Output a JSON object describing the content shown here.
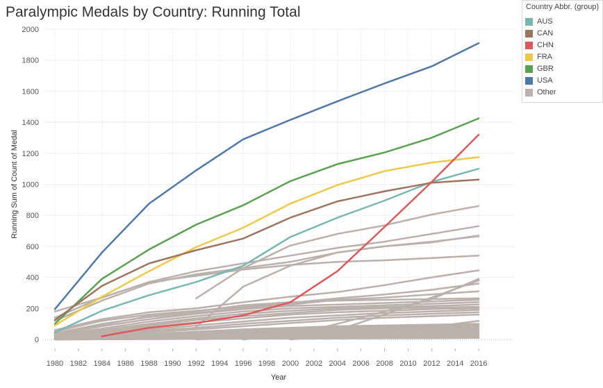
{
  "chart_data": {
    "type": "line",
    "title": "Paralympic Medals by Country: Running Total",
    "xlabel": "Year",
    "ylabel": "Running Sum of Count of Medal",
    "xlim": [
      1979,
      2019
    ],
    "ylim": [
      0,
      2000
    ],
    "x_ticks": [
      1980,
      1982,
      1984,
      1986,
      1988,
      1990,
      1992,
      1994,
      1996,
      1998,
      2000,
      2002,
      2004,
      2006,
      2008,
      2010,
      2012,
      2014,
      2016
    ],
    "y_ticks": [
      0,
      200,
      400,
      600,
      800,
      1000,
      1200,
      1400,
      1600,
      1800,
      2000
    ],
    "legend_title": "Country Abbr. (group)",
    "legend_position": "top-right",
    "legend": [
      {
        "name": "AUS",
        "color": "#76b7b2"
      },
      {
        "name": "CAN",
        "color": "#9c755f"
      },
      {
        "name": "CHN",
        "color": "#e15759"
      },
      {
        "name": "FRA",
        "color": "#edc948"
      },
      {
        "name": "GBR",
        "color": "#59a14f"
      },
      {
        "name": "USA",
        "color": "#4e79a7"
      },
      {
        "name": "Other",
        "color": "#bab0ac"
      }
    ],
    "series": [
      {
        "name": "USA",
        "color": "#4e79a7",
        "x": [
          1980,
          1984,
          1988,
          1992,
          1996,
          2000,
          2004,
          2008,
          2012,
          2016
        ],
        "y": [
          195,
          560,
          875,
          1090,
          1290,
          1415,
          1535,
          1650,
          1760,
          1910
        ]
      },
      {
        "name": "GBR",
        "color": "#59a14f",
        "x": [
          1980,
          1984,
          1988,
          1992,
          1996,
          2000,
          2004,
          2008,
          2012,
          2016
        ],
        "y": [
          100,
          390,
          580,
          740,
          865,
          1020,
          1130,
          1205,
          1300,
          1425
        ]
      },
      {
        "name": "FRA",
        "color": "#edc948",
        "x": [
          1980,
          1984,
          1988,
          1992,
          1996,
          2000,
          2004,
          2008,
          2012,
          2016
        ],
        "y": [
          90,
          275,
          440,
          595,
          720,
          875,
          995,
          1085,
          1140,
          1175
        ]
      },
      {
        "name": "AUS",
        "color": "#76b7b2",
        "x": [
          1980,
          1984,
          1988,
          1992,
          1996,
          2000,
          2004,
          2008,
          2012,
          2016
        ],
        "y": [
          45,
          185,
          285,
          370,
          475,
          660,
          785,
          895,
          1015,
          1100
        ]
      },
      {
        "name": "CAN",
        "color": "#9c755f",
        "x": [
          1980,
          1984,
          1988,
          1992,
          1996,
          2000,
          2004,
          2008,
          2012,
          2016
        ],
        "y": [
          125,
          345,
          490,
          575,
          650,
          785,
          890,
          955,
          1010,
          1030
        ]
      },
      {
        "name": "CHN",
        "color": "#e15759",
        "x": [
          1984,
          1988,
          1992,
          1996,
          2000,
          2004,
          2008,
          2012,
          2016
        ],
        "y": [
          20,
          75,
          105,
          155,
          240,
          440,
          725,
          1015,
          1320
        ]
      }
    ],
    "other_series": [
      {
        "x": [
          1980,
          1984,
          1988,
          1992,
          1996,
          2000,
          2004,
          2008,
          2012,
          2016
        ],
        "y": [
          180,
          270,
          370,
          440,
          490,
          540,
          590,
          630,
          680,
          730
        ]
      },
      {
        "x": [
          1980,
          1984,
          1988,
          1992,
          1996,
          2000,
          2004,
          2008,
          2012,
          2016
        ],
        "y": [
          120,
          250,
          360,
          420,
          460,
          500,
          560,
          600,
          630,
          665
        ]
      },
      {
        "x": [
          1980,
          1984,
          1988,
          1992,
          1996,
          2000,
          2004,
          2008,
          2012,
          2016
        ],
        "y": [
          140,
          270,
          370,
          410,
          450,
          480,
          500,
          510,
          525,
          540
        ]
      },
      {
        "x": [
          1992,
          1996,
          2000,
          2004,
          2008,
          2012,
          2016
        ],
        "y": [
          265,
          460,
          605,
          680,
          735,
          805,
          860
        ]
      },
      {
        "x": [
          1992,
          1996,
          2000,
          2004,
          2008,
          2012,
          2016
        ],
        "y": [
          80,
          340,
          475,
          560,
          600,
          625,
          670
        ]
      },
      {
        "x": [
          1980,
          1984,
          1988,
          1992,
          1996,
          2000,
          2004,
          2008,
          2012,
          2016
        ],
        "y": [
          60,
          130,
          175,
          200,
          240,
          275,
          305,
          350,
          400,
          445
        ]
      },
      {
        "x": [
          1980,
          1984,
          1988,
          1992,
          1996,
          2000,
          2004,
          2008,
          2012,
          2016
        ],
        "y": [
          50,
          120,
          160,
          185,
          210,
          235,
          265,
          290,
          320,
          360
        ]
      },
      {
        "x": [
          1980,
          1984,
          1988,
          1992,
          1996,
          2000,
          2004,
          2008,
          2012,
          2016
        ],
        "y": [
          40,
          100,
          145,
          170,
          200,
          225,
          255,
          270,
          290,
          310
        ]
      },
      {
        "x": [
          1980,
          1984,
          1988,
          1992,
          1996,
          2000,
          2004,
          2008,
          2012,
          2016
        ],
        "y": [
          35,
          95,
          150,
          180,
          220,
          240,
          250,
          255,
          260,
          265
        ]
      },
      {
        "x": [
          1980,
          1984,
          1988,
          1992,
          1996,
          2000,
          2004,
          2008,
          2012,
          2016
        ],
        "y": [
          30,
          85,
          130,
          165,
          195,
          215,
          225,
          235,
          245,
          255
        ]
      },
      {
        "x": [
          1980,
          1984,
          1988,
          1992,
          1996,
          2000,
          2004,
          2008,
          2012,
          2016
        ],
        "y": [
          25,
          70,
          115,
          150,
          180,
          200,
          210,
          220,
          230,
          240
        ]
      },
      {
        "x": [
          1980,
          1984,
          1988,
          1992,
          1996,
          2000,
          2004,
          2008,
          2012,
          2016
        ],
        "y": [
          20,
          60,
          100,
          135,
          165,
          185,
          200,
          210,
          215,
          225
        ]
      },
      {
        "x": [
          1980,
          1984,
          1988,
          1992,
          1996,
          2000,
          2004,
          2008,
          2012,
          2016
        ],
        "y": [
          15,
          50,
          90,
          125,
          150,
          170,
          190,
          200,
          205,
          210
        ]
      },
      {
        "x": [
          1980,
          1984,
          1988,
          1992,
          1996,
          2000,
          2004,
          2008,
          2012,
          2016
        ],
        "y": [
          15,
          40,
          80,
          110,
          135,
          160,
          175,
          185,
          195,
          200
        ]
      },
      {
        "x": [
          1980,
          1984,
          1988,
          1992,
          1996,
          2000,
          2004,
          2008,
          2012,
          2016
        ],
        "y": [
          10,
          35,
          65,
          90,
          115,
          140,
          155,
          170,
          180,
          190
        ]
      },
      {
        "x": [
          1980,
          1984,
          1988,
          1992,
          1996,
          2000,
          2004,
          2008,
          2012,
          2016
        ],
        "y": [
          10,
          30,
          55,
          75,
          100,
          120,
          140,
          155,
          165,
          175
        ]
      },
      {
        "x": [
          1980,
          1984,
          1988,
          1992,
          1996,
          2000,
          2004,
          2008,
          2012,
          2016
        ],
        "y": [
          5,
          25,
          45,
          65,
          85,
          105,
          125,
          140,
          150,
          160
        ]
      },
      {
        "x": [
          1996,
          2000,
          2004,
          2008,
          2012,
          2016
        ],
        "y": [
          0,
          30,
          100,
          180,
          260,
          390
        ]
      },
      {
        "x": [
          2000,
          2004,
          2008,
          2012,
          2016
        ],
        "y": [
          0,
          60,
          160,
          270,
          380
        ]
      },
      {
        "x": [
          1980,
          1984,
          1988,
          1992,
          1996,
          2000,
          2004,
          2008,
          2012,
          2016
        ],
        "y": [
          5,
          20,
          35,
          50,
          65,
          75,
          85,
          90,
          95,
          100
        ]
      },
      {
        "x": [
          1980,
          1984,
          1988,
          1992,
          1996,
          2000,
          2004,
          2008,
          2012,
          2016
        ],
        "y": [
          5,
          15,
          30,
          40,
          55,
          65,
          75,
          80,
          88,
          95
        ]
      },
      {
        "x": [
          1980,
          1984,
          1988,
          1992,
          1996,
          2000,
          2004,
          2008,
          2012,
          2016
        ],
        "y": [
          0,
          10,
          25,
          35,
          45,
          55,
          65,
          72,
          80,
          85
        ]
      },
      {
        "x": [
          1980,
          1984,
          1988,
          1992,
          1996,
          2000,
          2004,
          2008,
          2012,
          2016
        ],
        "y": [
          0,
          10,
          20,
          30,
          40,
          50,
          55,
          62,
          70,
          75
        ]
      },
      {
        "x": [
          1980,
          1984,
          1988,
          1992,
          1996,
          2000,
          2004,
          2008,
          2012,
          2016
        ],
        "y": [
          0,
          8,
          15,
          25,
          32,
          40,
          48,
          55,
          60,
          65
        ]
      },
      {
        "x": [
          1980,
          1984,
          1988,
          1992,
          1996,
          2000,
          2004,
          2008,
          2012,
          2016
        ],
        "y": [
          0,
          5,
          12,
          20,
          26,
          33,
          40,
          45,
          50,
          55
        ]
      },
      {
        "x": [
          1980,
          1984,
          1988,
          1992,
          1996,
          2000,
          2004,
          2008,
          2012,
          2016
        ],
        "y": [
          0,
          5,
          10,
          15,
          20,
          25,
          30,
          35,
          40,
          45
        ]
      },
      {
        "x": [
          1980,
          1984,
          1988,
          1992,
          1996,
          2000,
          2004,
          2008,
          2012,
          2016
        ],
        "y": [
          0,
          3,
          8,
          12,
          16,
          20,
          24,
          28,
          32,
          36
        ]
      },
      {
        "x": [
          1980,
          1984,
          1988,
          1992,
          1996,
          2000,
          2004,
          2008,
          2012,
          2016
        ],
        "y": [
          0,
          3,
          5,
          8,
          12,
          15,
          18,
          22,
          25,
          28
        ]
      },
      {
        "x": [
          1980,
          1984,
          1988,
          1992,
          1996,
          2000,
          2004,
          2008,
          2012,
          2016
        ],
        "y": [
          0,
          2,
          4,
          6,
          8,
          10,
          12,
          15,
          18,
          20
        ]
      },
      {
        "x": [
          1980,
          1984,
          1988,
          1992,
          1996,
          2000,
          2004,
          2008,
          2012,
          2016
        ],
        "y": [
          0,
          1,
          3,
          4,
          6,
          8,
          10,
          11,
          13,
          15
        ]
      },
      {
        "x": [
          1980,
          1984,
          1988,
          1992,
          1996,
          2000,
          2004,
          2008,
          2012,
          2016
        ],
        "y": [
          0,
          1,
          2,
          3,
          4,
          5,
          6,
          7,
          8,
          10
        ]
      },
      {
        "x": [
          1992,
          1996,
          2000,
          2004,
          2008,
          2012,
          2016
        ],
        "y": [
          0,
          10,
          25,
          45,
          60,
          80,
          95
        ]
      },
      {
        "x": [
          2000,
          2004,
          2008,
          2012,
          2016
        ],
        "y": [
          0,
          20,
          50,
          80,
          120
        ]
      }
    ]
  }
}
